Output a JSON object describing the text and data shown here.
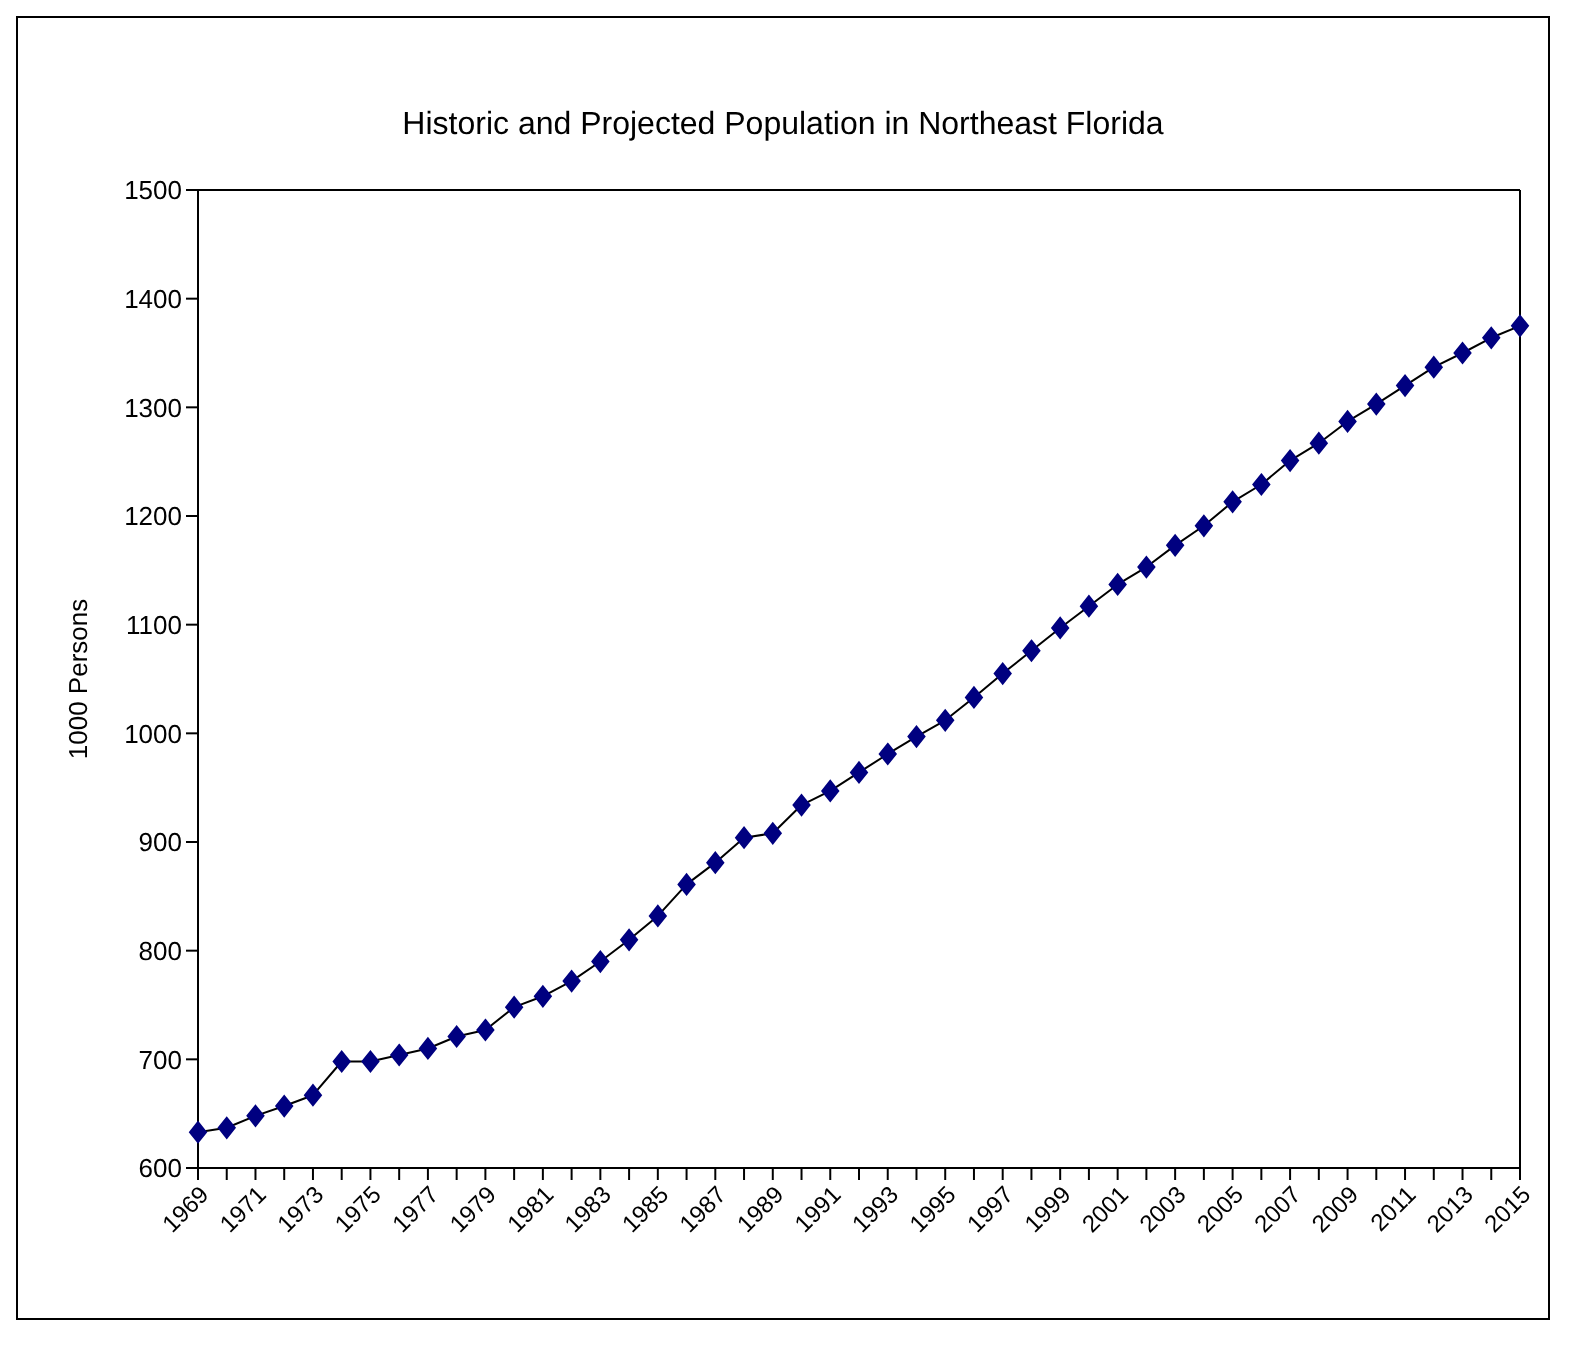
{
  "chart_data": {
    "type": "line",
    "title": "Historic and Projected Population in Northeast Florida",
    "ylabel": "1000 Persons",
    "categories": [
      "1969",
      null,
      "1971",
      null,
      "1973",
      null,
      "1975",
      null,
      "1977",
      null,
      "1979",
      null,
      "1981",
      null,
      "1983",
      null,
      "1985",
      null,
      "1987",
      null,
      "1989",
      null,
      "1991",
      null,
      "1993",
      null,
      "1995",
      null,
      "1997",
      null,
      "1999",
      null,
      "2001",
      null,
      "2003",
      null,
      "2005",
      null,
      "2007",
      null,
      "2009",
      null,
      "2011",
      null,
      "2013",
      null,
      "2015"
    ],
    "series": [
      {
        "color": "#000080",
        "values": [
          633,
          637,
          648,
          657,
          667,
          698,
          698,
          704,
          710,
          721,
          727,
          748,
          758,
          772,
          790,
          810,
          832,
          861,
          881,
          904,
          908,
          934,
          947,
          964,
          981,
          997,
          1012,
          1033,
          1055,
          1076,
          1097,
          1117,
          1137,
          1153,
          1173,
          1191,
          1213,
          1229,
          1251,
          1267,
          1287,
          1303,
          1320,
          1337,
          1350,
          1364,
          1375
        ]
      }
    ],
    "ylim": [
      600,
      1500
    ],
    "yticks": [
      600,
      700,
      800,
      900,
      1000,
      1100,
      1200,
      1300,
      1400,
      1500
    ],
    "marker": "diamond",
    "line_style": "solid",
    "grid": false,
    "legend": false
  }
}
